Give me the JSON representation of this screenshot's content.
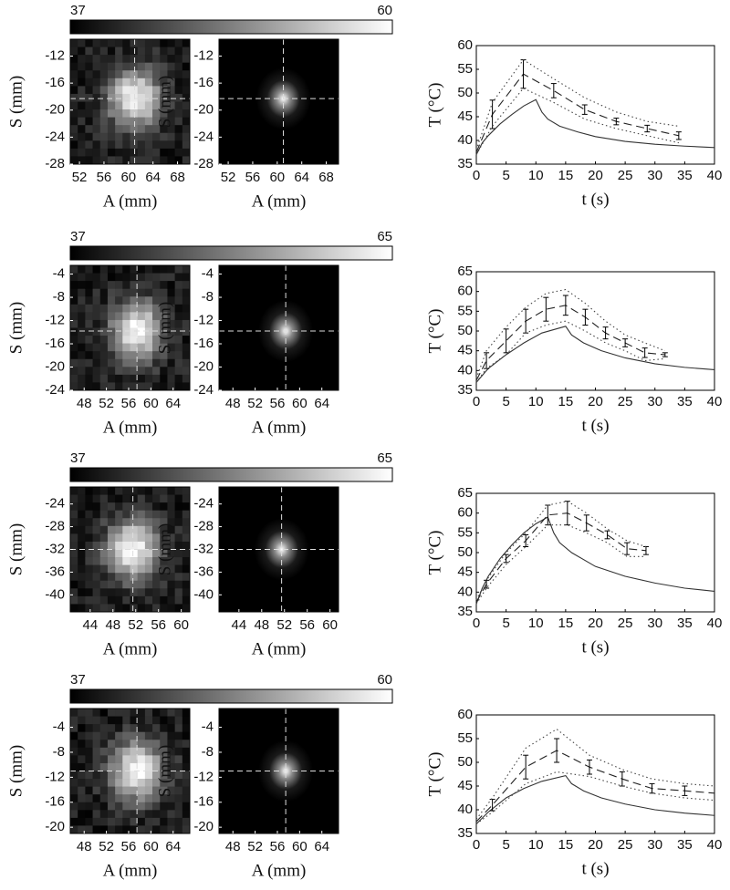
{
  "chart_data": [
    {
      "type": "line",
      "colorbar_lim": [
        37,
        60
      ],
      "heatmap": {
        "xlabel": "A (mm)",
        "ylabel": "S (mm)",
        "xlim": [
          50.5,
          70
        ],
        "ylim": [
          -28,
          -9.5
        ],
        "xticks": [
          52,
          56,
          60,
          64,
          68
        ],
        "yticks": [
          -12,
          -16,
          -20,
          -24,
          -28
        ]
      },
      "xlabel": "t (s)",
      "ylabel": "T (°C)",
      "xlim": [
        0,
        40
      ],
      "ylim": [
        35,
        60
      ],
      "xticks": [
        0,
        5,
        10,
        15,
        20,
        25,
        30,
        35,
        40
      ],
      "yticks": [
        35,
        40,
        45,
        50,
        55,
        60
      ],
      "series": [
        {
          "style": "solid",
          "color": "#333333",
          "x": [
            0,
            1,
            2,
            4,
            6,
            8,
            10,
            11,
            12,
            14,
            17,
            20,
            25,
            30,
            35,
            40
          ],
          "values": [
            37,
            39.5,
            41,
            43.5,
            45.5,
            47.3,
            48.6,
            46,
            44.5,
            43,
            41.8,
            40.8,
            39.8,
            39.2,
            38.8,
            38.5
          ]
        },
        {
          "style": "dashed",
          "color": "#222222",
          "x": [
            0,
            2.7,
            7.9,
            13,
            18.2,
            23.5,
            28.7,
            34
          ],
          "values": [
            37.5,
            45.5,
            54,
            50.5,
            46.5,
            44,
            42.5,
            41
          ],
          "errors": [
            null,
            3,
            3,
            1.5,
            1,
            0.7,
            0.7,
            0.8
          ]
        },
        {
          "style": "dotted",
          "color": "#444444",
          "x": [
            0,
            2.7,
            7.9,
            13,
            18.2,
            23.5,
            28.7,
            34
          ],
          "values": [
            38,
            48,
            57,
            53,
            49,
            46,
            44,
            43
          ]
        },
        {
          "style": "dotted",
          "color": "#444444",
          "x": [
            0,
            2.7,
            7.9,
            13,
            18.2,
            23.5,
            28.7,
            34
          ],
          "values": [
            37,
            43,
            51,
            48,
            44.5,
            42.5,
            41,
            39.5
          ]
        }
      ]
    },
    {
      "type": "line",
      "colorbar_lim": [
        37,
        65
      ],
      "heatmap": {
        "xlabel": "A (mm)",
        "ylabel": "S (mm)",
        "xlim": [
          45.5,
          67
        ],
        "ylim": [
          -24,
          -2.5
        ],
        "xticks": [
          48,
          52,
          56,
          60,
          64
        ],
        "yticks": [
          -4,
          -8,
          -12,
          -16,
          -20,
          -24
        ]
      },
      "xlabel": "t (s)",
      "ylabel": "T (°C)",
      "xlim": [
        0,
        40
      ],
      "ylim": [
        35,
        65
      ],
      "xticks": [
        0,
        5,
        10,
        15,
        20,
        25,
        30,
        35,
        40
      ],
      "yticks": [
        35,
        40,
        45,
        50,
        55,
        60,
        65
      ],
      "series": [
        {
          "style": "solid",
          "color": "#333333",
          "x": [
            0,
            2,
            5,
            8,
            11,
            15,
            16,
            18,
            21,
            25,
            30,
            35,
            40
          ],
          "values": [
            37,
            40.5,
            44,
            47,
            49.5,
            51.2,
            49,
            47,
            45,
            43.2,
            41.7,
            40.8,
            40.2
          ]
        },
        {
          "style": "dashed",
          "color": "#222222",
          "x": [
            0,
            1.7,
            5,
            8.3,
            11.7,
            15,
            18.3,
            21.7,
            25,
            28.3,
            31.7
          ],
          "values": [
            37.5,
            42.5,
            47.5,
            52.5,
            55.5,
            56.5,
            53.5,
            49.5,
            47,
            44.5,
            44
          ],
          "errors": [
            null,
            2,
            3,
            3,
            3,
            2.5,
            2,
            1.5,
            1,
            1.2,
            0.5
          ]
        },
        {
          "style": "dotted",
          "color": "#444444",
          "x": [
            0,
            1.7,
            5,
            8.3,
            11.7,
            15,
            18.3,
            21.7,
            25,
            28.3,
            31.7
          ],
          "values": [
            38,
            45,
            51,
            56,
            59.5,
            60.5,
            57,
            52.5,
            49,
            47,
            45
          ]
        },
        {
          "style": "dotted",
          "color": "#444444",
          "x": [
            0,
            1.7,
            5,
            8.3,
            11.7,
            15,
            18.3,
            21.7,
            25,
            28.3,
            31.7
          ],
          "values": [
            37,
            40.5,
            44,
            49.5,
            51.5,
            52.5,
            50,
            47,
            45,
            42.5,
            43
          ]
        }
      ]
    },
    {
      "type": "line",
      "colorbar_lim": [
        37,
        65
      ],
      "heatmap": {
        "xlabel": "A (mm)",
        "ylabel": "S (mm)",
        "xlim": [
          40.5,
          61.5
        ],
        "ylim": [
          -43,
          -21
        ],
        "xticks": [
          44,
          48,
          52,
          56,
          60
        ],
        "yticks": [
          -24,
          -28,
          -32,
          -36,
          -40
        ]
      },
      "xlabel": "t (s)",
      "ylabel": "T (°C)",
      "xlim": [
        0,
        40
      ],
      "ylim": [
        35,
        65
      ],
      "xticks": [
        0,
        5,
        10,
        15,
        20,
        25,
        30,
        35,
        40
      ],
      "yticks": [
        35,
        40,
        45,
        50,
        55,
        60,
        65
      ],
      "series": [
        {
          "style": "solid",
          "color": "#333333",
          "x": [
            0,
            1,
            2,
            4,
            6,
            8,
            10,
            12,
            13,
            14,
            16,
            20,
            25,
            30,
            35,
            40
          ],
          "values": [
            37,
            41,
            44,
            48.5,
            52,
            55,
            57.3,
            59,
            55,
            52.5,
            50,
            46.5,
            44,
            42.3,
            41,
            40.2
          ]
        },
        {
          "style": "dashed",
          "color": "#222222",
          "x": [
            0,
            1.7,
            5,
            8.3,
            12,
            15.3,
            18.5,
            22,
            25.3,
            28.5
          ],
          "values": [
            37.5,
            42,
            48.5,
            53,
            59.5,
            60,
            57.5,
            54.5,
            51,
            50.5
          ],
          "errors": [
            null,
            1,
            1,
            1.5,
            2.5,
            3,
            2,
            1,
            1.5,
            1
          ]
        },
        {
          "style": "dotted",
          "color": "#444444",
          "x": [
            0,
            1.7,
            5,
            8.3,
            12,
            15.3,
            18.5,
            22,
            25.3,
            28.5
          ],
          "values": [
            38,
            43,
            50,
            55,
            62,
            63,
            60,
            56,
            53,
            51.5
          ]
        },
        {
          "style": "dotted",
          "color": "#444444",
          "x": [
            0,
            1.7,
            5,
            8.3,
            12,
            15.3,
            18.5,
            22,
            25.3,
            28.5
          ],
          "values": [
            37,
            41,
            47,
            51.5,
            57,
            57,
            55,
            52.5,
            49,
            49
          ]
        }
      ]
    },
    {
      "type": "line",
      "colorbar_lim": [
        37,
        60
      ],
      "heatmap": {
        "xlabel": "A (mm)",
        "ylabel": "S (mm)",
        "xlim": [
          45.5,
          67
        ],
        "ylim": [
          -21,
          -1
        ],
        "xticks": [
          48,
          52,
          56,
          60,
          64
        ],
        "yticks": [
          -4,
          -8,
          -12,
          -16,
          -20
        ]
      },
      "xlabel": "t (s)",
      "ylabel": "T (°C)",
      "xlim": [
        0,
        40
      ],
      "ylim": [
        35,
        60
      ],
      "xticks": [
        0,
        5,
        10,
        15,
        20,
        25,
        30,
        35,
        40
      ],
      "yticks": [
        35,
        40,
        45,
        50,
        55,
        60
      ],
      "series": [
        {
          "style": "solid",
          "color": "#333333",
          "x": [
            0,
            2,
            5,
            8,
            11,
            15,
            16,
            18,
            21,
            25,
            30,
            35,
            40
          ],
          "values": [
            37,
            39.5,
            42.5,
            44.5,
            46,
            47.2,
            45.5,
            44,
            42.5,
            41.2,
            40,
            39.3,
            38.8
          ]
        },
        {
          "style": "dashed",
          "color": "#222222",
          "x": [
            0,
            2.7,
            8.3,
            13.5,
            19,
            24.5,
            29.5,
            35,
            40
          ],
          "values": [
            37.5,
            41,
            49,
            52.5,
            49,
            46.5,
            44.5,
            44,
            43.5
          ],
          "errors": [
            null,
            1.2,
            2.5,
            2.5,
            1.5,
            1.5,
            1,
            1,
            null
          ]
        },
        {
          "style": "dotted",
          "color": "#444444",
          "x": [
            0,
            2.7,
            8.3,
            13.5,
            19,
            24.5,
            29.5,
            35,
            40
          ],
          "values": [
            38,
            42.5,
            53,
            57,
            51.5,
            48.5,
            46.5,
            45.5,
            45
          ]
        },
        {
          "style": "dotted",
          "color": "#444444",
          "x": [
            0,
            2.7,
            8.3,
            13.5,
            19,
            24.5,
            29.5,
            35,
            40
          ],
          "values": [
            37,
            39.5,
            45.5,
            48,
            47,
            45,
            43.5,
            42.5,
            42
          ]
        }
      ]
    }
  ]
}
